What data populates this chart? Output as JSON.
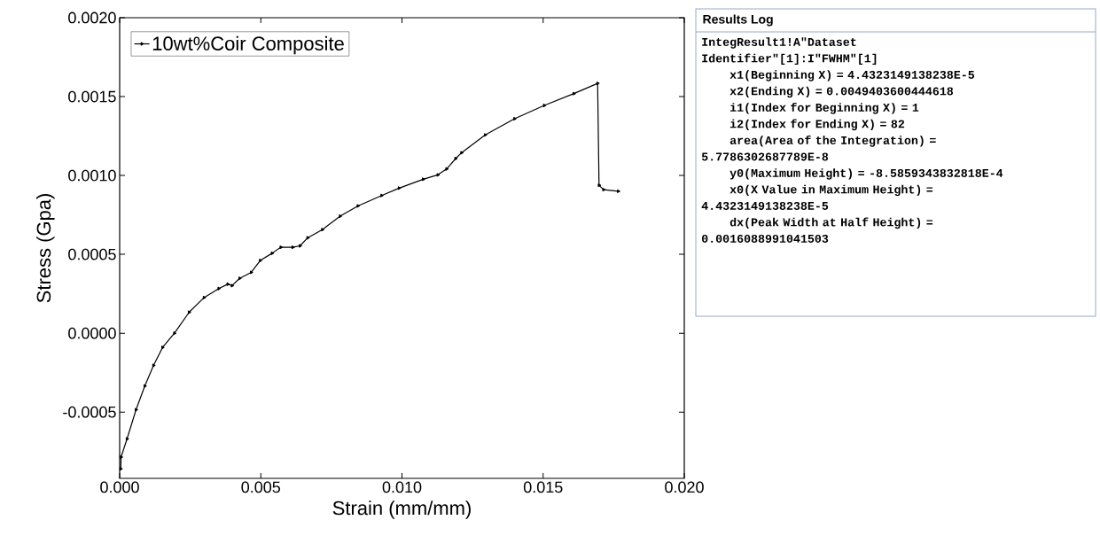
{
  "chart_data": {
    "type": "line",
    "xlabel": "Strain (mm/mm)",
    "ylabel": "Stress (Gpa)",
    "xlim": [
      0,
      0.02
    ],
    "ylim": [
      -0.00092,
      0.002
    ],
    "xticks": [
      {
        "value": 0,
        "label": "0.000"
      },
      {
        "value": 0.005,
        "label": "0.005"
      },
      {
        "value": 0.01,
        "label": "0.010"
      },
      {
        "value": 0.015,
        "label": "0.015"
      },
      {
        "value": 0.02,
        "label": "0.020"
      }
    ],
    "yticks": [
      {
        "value": -0.0005,
        "label": "-0.0005"
      },
      {
        "value": 0,
        "label": "0.0000"
      },
      {
        "value": 0.0005,
        "label": "0.0005"
      },
      {
        "value": 0.001,
        "label": "0.0010"
      },
      {
        "value": 0.0015,
        "label": "0.0015"
      },
      {
        "value": 0.002,
        "label": "0.0020"
      }
    ],
    "legend": "top left",
    "marker": "triangle",
    "line_style": "solid",
    "grid": false,
    "series": [
      {
        "name": "10wt%Coir Composite",
        "color": "#000000",
        "x": [
          4e-05,
          5e-05,
          0.00026,
          0.00058,
          0.00089,
          0.0012,
          0.00152,
          0.00194,
          0.00246,
          0.00299,
          0.00351,
          0.00383,
          0.00398,
          0.00425,
          0.00466,
          0.00498,
          0.0054,
          0.00571,
          0.00613,
          0.00639,
          0.00666,
          0.00718,
          0.00781,
          0.00844,
          0.00928,
          0.0099,
          0.01075,
          0.01127,
          0.01158,
          0.0119,
          0.01211,
          0.01295,
          0.01399,
          0.01504,
          0.01609,
          0.01693,
          0.01698,
          0.01714,
          0.01766
        ],
        "values": [
          -0.00086,
          -0.000785,
          -0.00067,
          -0.000485,
          -0.000335,
          -0.000204,
          -9e-05,
          0,
          0.000133,
          0.000226,
          0.000283,
          0.000311,
          0.000302,
          0.000348,
          0.000386,
          0.000461,
          0.000507,
          0.000545,
          0.000545,
          0.000554,
          0.000605,
          0.000657,
          0.000742,
          0.000807,
          0.000873,
          0.00092,
          0.000976,
          0.001004,
          0.001041,
          0.001107,
          0.001144,
          0.001257,
          0.00136,
          0.001444,
          0.001519,
          0.001584,
          0.000938,
          0.00091,
          0.0009
        ]
      }
    ],
    "annotations": [
      "Results Log",
      "IntegResult1!A\"Dataset Identifier\"[1]:I\"FWHM\"[1]",
      "x1(Beginning X) = 4.4323149138238E-5",
      "x2(Ending X) = 0.0049403600444618",
      "i1(Index for Beginning X) = 1",
      "i2(Index for Ending X) = 82",
      "area(Area of the Integration) = 5.7786302687789E-8",
      "y0(Maximum Height) = -8.5859343832818E-4",
      "x0(X Value in Maximum Height) = 4.4323149138238E-5",
      "dx(Peak Width at Half Height) = 0.0016088991041503"
    ]
  }
}
